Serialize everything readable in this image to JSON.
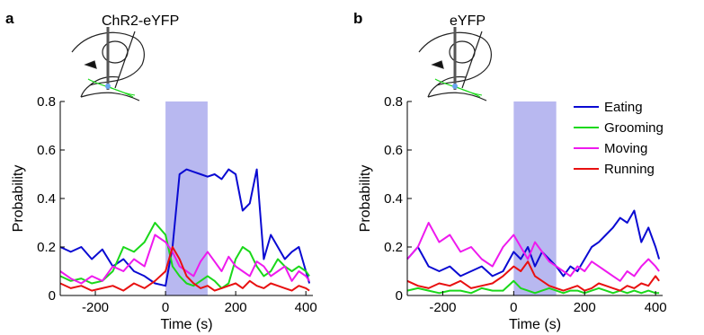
{
  "panels": [
    {
      "letter": "a",
      "title": "ChR2-eYFP"
    },
    {
      "letter": "b",
      "title": "eYFP"
    }
  ],
  "legend": [
    {
      "label": "Eating",
      "color": "#0a0ad2"
    },
    {
      "label": "Grooming",
      "color": "#1ad81a"
    },
    {
      "label": "Moving",
      "color": "#ee1aee"
    },
    {
      "label": "Running",
      "color": "#e81010"
    }
  ],
  "stim_color": "#b8b8f0",
  "chart_data": [
    {
      "type": "line",
      "panel": "a",
      "xlabel": "Time (s)",
      "ylabel": "Probability",
      "xlim": [
        -300,
        420
      ],
      "ylim": [
        0,
        0.8
      ],
      "xticks": [
        -200,
        0,
        200,
        400
      ],
      "yticks": [
        0,
        0.2,
        0.4,
        0.6,
        0.8
      ],
      "shaded_interval": [
        0,
        120
      ],
      "x": [
        -300,
        -270,
        -240,
        -210,
        -180,
        -150,
        -120,
        -90,
        -60,
        -30,
        0,
        20,
        40,
        60,
        80,
        100,
        120,
        140,
        160,
        180,
        200,
        220,
        240,
        260,
        280,
        300,
        320,
        340,
        360,
        380,
        400,
        410
      ],
      "series": [
        {
          "name": "Eating",
          "color": "#0a0ad2",
          "values": [
            0.2,
            0.18,
            0.2,
            0.15,
            0.19,
            0.12,
            0.15,
            0.1,
            0.08,
            0.05,
            0.04,
            0.2,
            0.5,
            0.52,
            0.51,
            0.5,
            0.49,
            0.5,
            0.48,
            0.52,
            0.5,
            0.35,
            0.38,
            0.52,
            0.15,
            0.25,
            0.2,
            0.15,
            0.18,
            0.2,
            0.1,
            0.05
          ]
        },
        {
          "name": "Grooming",
          "color": "#1ad81a",
          "values": [
            0.08,
            0.06,
            0.07,
            0.05,
            0.06,
            0.1,
            0.2,
            0.18,
            0.22,
            0.3,
            0.25,
            0.12,
            0.08,
            0.05,
            0.04,
            0.06,
            0.08,
            0.06,
            0.03,
            0.05,
            0.15,
            0.2,
            0.18,
            0.12,
            0.08,
            0.1,
            0.15,
            0.12,
            0.1,
            0.12,
            0.1,
            0.08
          ]
        },
        {
          "name": "Moving",
          "color": "#ee1aee",
          "values": [
            0.1,
            0.07,
            0.05,
            0.08,
            0.06,
            0.12,
            0.1,
            0.15,
            0.12,
            0.25,
            0.22,
            0.18,
            0.12,
            0.1,
            0.08,
            0.14,
            0.18,
            0.14,
            0.1,
            0.16,
            0.12,
            0.1,
            0.08,
            0.14,
            0.12,
            0.08,
            0.1,
            0.12,
            0.06,
            0.1,
            0.08,
            0.06
          ]
        },
        {
          "name": "Running",
          "color": "#e81010",
          "values": [
            0.05,
            0.03,
            0.04,
            0.02,
            0.03,
            0.04,
            0.02,
            0.05,
            0.03,
            0.06,
            0.1,
            0.2,
            0.15,
            0.08,
            0.05,
            0.03,
            0.04,
            0.02,
            0.03,
            0.04,
            0.05,
            0.03,
            0.06,
            0.04,
            0.03,
            0.05,
            0.04,
            0.03,
            0.02,
            0.04,
            0.03,
            0.02
          ]
        }
      ]
    },
    {
      "type": "line",
      "panel": "b",
      "xlabel": "Time (s)",
      "ylabel": "Probability",
      "xlim": [
        -300,
        420
      ],
      "ylim": [
        0,
        0.8
      ],
      "xticks": [
        -200,
        0,
        200,
        400
      ],
      "yticks": [
        0,
        0.2,
        0.4,
        0.6,
        0.8
      ],
      "shaded_interval": [
        0,
        120
      ],
      "x": [
        -300,
        -270,
        -240,
        -210,
        -180,
        -150,
        -120,
        -90,
        -60,
        -30,
        0,
        20,
        40,
        60,
        80,
        100,
        120,
        140,
        160,
        180,
        200,
        220,
        240,
        260,
        280,
        300,
        320,
        340,
        360,
        380,
        400,
        410
      ],
      "series": [
        {
          "name": "Eating",
          "color": "#0a0ad2",
          "values": [
            0.15,
            0.2,
            0.12,
            0.1,
            0.12,
            0.08,
            0.1,
            0.12,
            0.08,
            0.1,
            0.18,
            0.15,
            0.2,
            0.12,
            0.18,
            0.15,
            0.12,
            0.08,
            0.12,
            0.1,
            0.15,
            0.2,
            0.22,
            0.25,
            0.28,
            0.32,
            0.3,
            0.35,
            0.22,
            0.28,
            0.2,
            0.15
          ]
        },
        {
          "name": "Grooming",
          "color": "#1ad81a",
          "values": [
            0.02,
            0.03,
            0.02,
            0.01,
            0.02,
            0.02,
            0.01,
            0.03,
            0.02,
            0.02,
            0.06,
            0.03,
            0.02,
            0.01,
            0.02,
            0.03,
            0.02,
            0.01,
            0.02,
            0.02,
            0.01,
            0.02,
            0.03,
            0.02,
            0.01,
            0.02,
            0.01,
            0.02,
            0.01,
            0.02,
            0.01,
            0.01
          ]
        },
        {
          "name": "Moving",
          "color": "#ee1aee",
          "values": [
            0.15,
            0.2,
            0.3,
            0.22,
            0.25,
            0.18,
            0.2,
            0.15,
            0.12,
            0.2,
            0.25,
            0.2,
            0.15,
            0.22,
            0.18,
            0.14,
            0.12,
            0.1,
            0.08,
            0.12,
            0.1,
            0.14,
            0.12,
            0.1,
            0.08,
            0.06,
            0.1,
            0.08,
            0.12,
            0.15,
            0.12,
            0.1
          ]
        },
        {
          "name": "Running",
          "color": "#e81010",
          "values": [
            0.06,
            0.04,
            0.03,
            0.05,
            0.04,
            0.06,
            0.03,
            0.04,
            0.05,
            0.08,
            0.12,
            0.1,
            0.14,
            0.08,
            0.06,
            0.04,
            0.03,
            0.02,
            0.03,
            0.04,
            0.02,
            0.03,
            0.05,
            0.04,
            0.03,
            0.02,
            0.04,
            0.03,
            0.05,
            0.04,
            0.08,
            0.06
          ]
        }
      ]
    }
  ]
}
